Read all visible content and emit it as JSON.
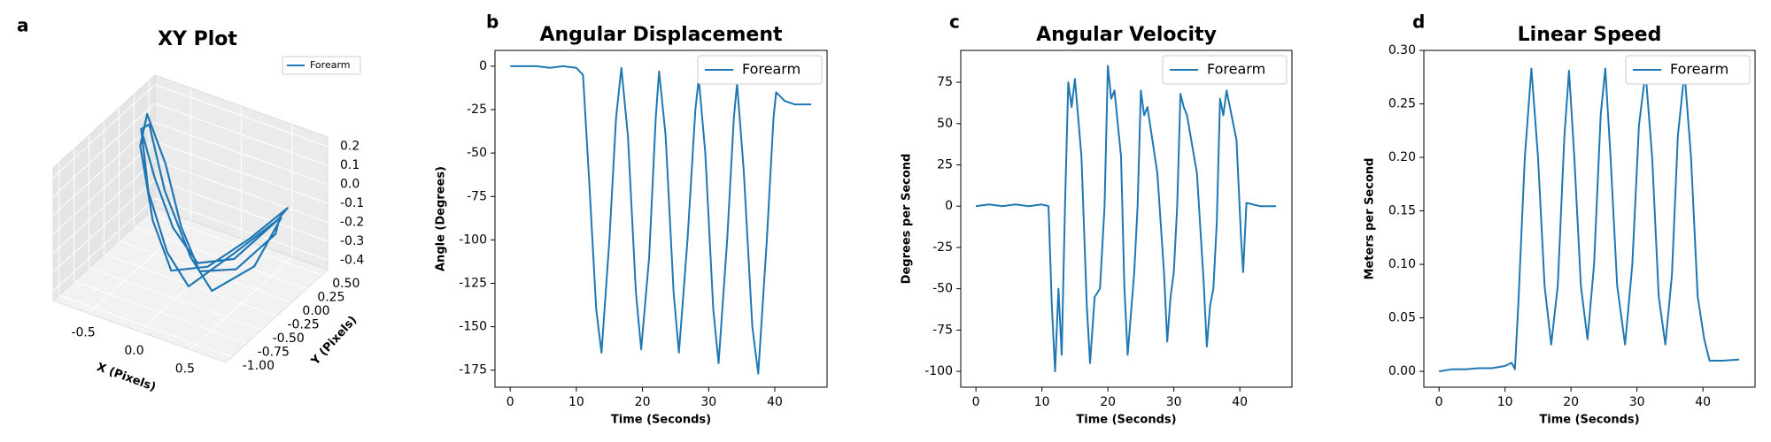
{
  "chart_data": [
    {
      "type": "line3d",
      "panel_label": "a",
      "title": "XY Plot",
      "xlabel": "X (Pixels)",
      "ylabel": "Y (Pixels)",
      "legend": "upper right",
      "xlim": [
        -0.85,
        0.85
      ],
      "ylim": [
        -1.1,
        0.6
      ],
      "zlim": [
        -0.45,
        0.25
      ],
      "xticks": [
        -0.5,
        {
          "value": 0,
          "label": "0.0"
        },
        0.5
      ],
      "yticks": [
        {
          "value": -1,
          "label": "-1.00"
        },
        -0.75,
        {
          "value": -0.5,
          "label": "-0.50"
        },
        -0.25,
        {
          "value": 0,
          "label": "0.00"
        },
        0.25,
        {
          "value": 0.5,
          "label": "0.50"
        }
      ],
      "zticks": [
        -0.4,
        -0.3,
        -0.2,
        -0.1,
        {
          "value": 0,
          "label": "0.0"
        },
        0.1,
        0.2
      ],
      "series": [
        {
          "name": "Forearm",
          "color": "#1f77b4",
          "x": [
            -0.75,
            -0.5,
            -0.2,
            0.1,
            0.4,
            0.7,
            0.75,
            0.5,
            0.2,
            -0.1,
            -0.4,
            -0.7,
            -0.75,
            -0.45,
            -0.15,
            0.15,
            0.45,
            0.72,
            0.7,
            0.4,
            0.1,
            -0.2,
            -0.5,
            -0.75,
            -0.7,
            -0.4,
            0,
            0.3,
            0.6,
            0.75
          ],
          "y": [
            0.2,
            0,
            -0.2,
            -0.3,
            -0.2,
            0,
            0.1,
            -0.1,
            -0.3,
            -0.4,
            -0.2,
            0.1,
            0.3,
            0.1,
            -0.15,
            -0.35,
            -0.25,
            -0.05,
            0.05,
            -0.2,
            -0.45,
            -0.3,
            -0.1,
            0.2,
            0.25,
            0,
            -0.25,
            -0.4,
            -0.2,
            0
          ],
          "z": [
            0.1,
            -0.05,
            -0.2,
            -0.3,
            -0.25,
            -0.05,
            0,
            -0.15,
            -0.3,
            -0.35,
            -0.2,
            0.05,
            0.15,
            0,
            -0.2,
            -0.32,
            -0.28,
            -0.1,
            -0.05,
            -0.22,
            -0.38,
            -0.3,
            -0.1,
            0.1,
            0.12,
            -0.1,
            -0.3,
            -0.38,
            -0.25,
            -0.02
          ]
        }
      ]
    },
    {
      "type": "line",
      "panel_label": "b",
      "title": "Angular Displacement",
      "xlabel": "Time (Seconds)",
      "ylabel": "Angle (Degrees)",
      "legend": "upper right",
      "xlim": [
        -2.3,
        47.9
      ],
      "ylim": [
        -184.8,
        9.1
      ],
      "xticks": [
        0,
        10,
        20,
        30,
        40
      ],
      "yticks": [
        0,
        -25,
        -50,
        -75,
        -100,
        -125,
        -150,
        -175
      ],
      "x": [
        0,
        2,
        4,
        6,
        8,
        10,
        11,
        12,
        13,
        13.8,
        15,
        16,
        16.8,
        17.8,
        19,
        19.8,
        21,
        22,
        22.5,
        23.5,
        24.7,
        25.5,
        26.8,
        28,
        28.5,
        29.5,
        30.7,
        31.5,
        32.8,
        33.8,
        34.3,
        35.3,
        36.6,
        37.5,
        38.8,
        39.8,
        40.2,
        41.5,
        43,
        45.5
      ],
      "series": [
        {
          "name": "Forearm",
          "color": "#1f77b4",
          "values": [
            0,
            0,
            0,
            -1,
            0,
            -1,
            -5,
            -70,
            -140,
            -165,
            -100,
            -30,
            -1,
            -40,
            -130,
            -163,
            -110,
            -30,
            -3,
            -40,
            -130,
            -165,
            -100,
            -25,
            -7,
            -50,
            -140,
            -171,
            -100,
            -30,
            -10,
            -60,
            -150,
            -177,
            -100,
            -30,
            -15,
            -20,
            -22,
            -22
          ]
        }
      ]
    },
    {
      "type": "line",
      "panel_label": "c",
      "title": "Angular Velocity",
      "xlabel": "Time (Seconds)",
      "ylabel": "Degrees per Second",
      "legend": "upper right",
      "xlim": [
        -2.3,
        47.9
      ],
      "ylim": [
        -109.6,
        94.3
      ],
      "xticks": [
        0,
        10,
        20,
        30,
        40
      ],
      "yticks": [
        75,
        50,
        25,
        0,
        -25,
        -50,
        -75,
        -100
      ],
      "x": [
        0,
        2,
        4,
        6,
        8,
        10,
        11,
        11.5,
        12,
        12.5,
        13,
        13.5,
        14,
        14.5,
        15,
        16,
        16.8,
        17.3,
        18,
        18.8,
        19.5,
        20,
        20.5,
        21,
        22,
        22.5,
        23,
        23.5,
        24,
        24.5,
        25,
        25.5,
        26,
        27.5,
        28.5,
        29,
        29.5,
        30,
        30.5,
        31,
        31.5,
        32,
        33.5,
        34.5,
        35,
        35.5,
        36,
        36.5,
        37,
        37.5,
        38,
        39.5,
        40.2,
        40.5,
        41,
        43,
        45.5
      ],
      "series": [
        {
          "name": "Forearm",
          "color": "#1f77b4",
          "values": [
            0,
            1,
            0,
            1,
            0,
            1,
            0,
            -60,
            -100,
            -50,
            -90,
            0,
            75,
            60,
            77,
            30,
            -60,
            -95,
            -55,
            -50,
            0,
            85,
            65,
            70,
            30,
            -50,
            -90,
            -65,
            -40,
            0,
            70,
            55,
            60,
            20,
            -40,
            -82,
            -55,
            -40,
            0,
            68,
            60,
            55,
            20,
            -45,
            -85,
            -60,
            -50,
            -10,
            65,
            55,
            70,
            40,
            -20,
            -40,
            2,
            0,
            0
          ]
        }
      ]
    },
    {
      "type": "line",
      "panel_label": "d",
      "title": "Linear Speed",
      "xlabel": "Time (Seconds)",
      "ylabel": "Meters per Second",
      "legend": "upper right",
      "xlim": [
        -2.3,
        47.9
      ],
      "ylim": [
        -0.0148,
        0.3
      ],
      "xticks": [
        0,
        10,
        20,
        30,
        40
      ],
      "yticks": [
        {
          "value": 0,
          "label": "0.00"
        },
        0.05,
        {
          "value": 0.1,
          "label": "0.10"
        },
        0.15,
        {
          "value": 0.2,
          "label": "0.20"
        },
        0.25,
        {
          "value": 0.3,
          "label": "0.30"
        }
      ],
      "x": [
        0,
        2,
        4,
        6,
        8,
        10,
        11,
        11.5,
        12,
        13,
        14,
        15,
        16,
        17,
        18,
        19,
        19.7,
        20.5,
        21.5,
        22.5,
        23.5,
        24.5,
        25.2,
        26,
        27,
        28.2,
        29.3,
        30.3,
        31.3,
        32.3,
        33.3,
        34.3,
        35.3,
        36.2,
        37.2,
        38.2,
        39.2,
        40.2,
        41,
        43,
        45.5
      ],
      "series": [
        {
          "name": "Forearm",
          "color": "#1f77b4",
          "values": [
            0,
            0.002,
            0.002,
            0.003,
            0.003,
            0.005,
            0.008,
            0.002,
            0.06,
            0.2,
            0.283,
            0.2,
            0.08,
            0.025,
            0.08,
            0.22,
            0.281,
            0.2,
            0.08,
            0.03,
            0.1,
            0.24,
            0.283,
            0.2,
            0.08,
            0.025,
            0.1,
            0.23,
            0.28,
            0.2,
            0.07,
            0.025,
            0.09,
            0.22,
            0.28,
            0.2,
            0.07,
            0.03,
            0.01,
            0.01,
            0.011
          ]
        }
      ]
    }
  ]
}
